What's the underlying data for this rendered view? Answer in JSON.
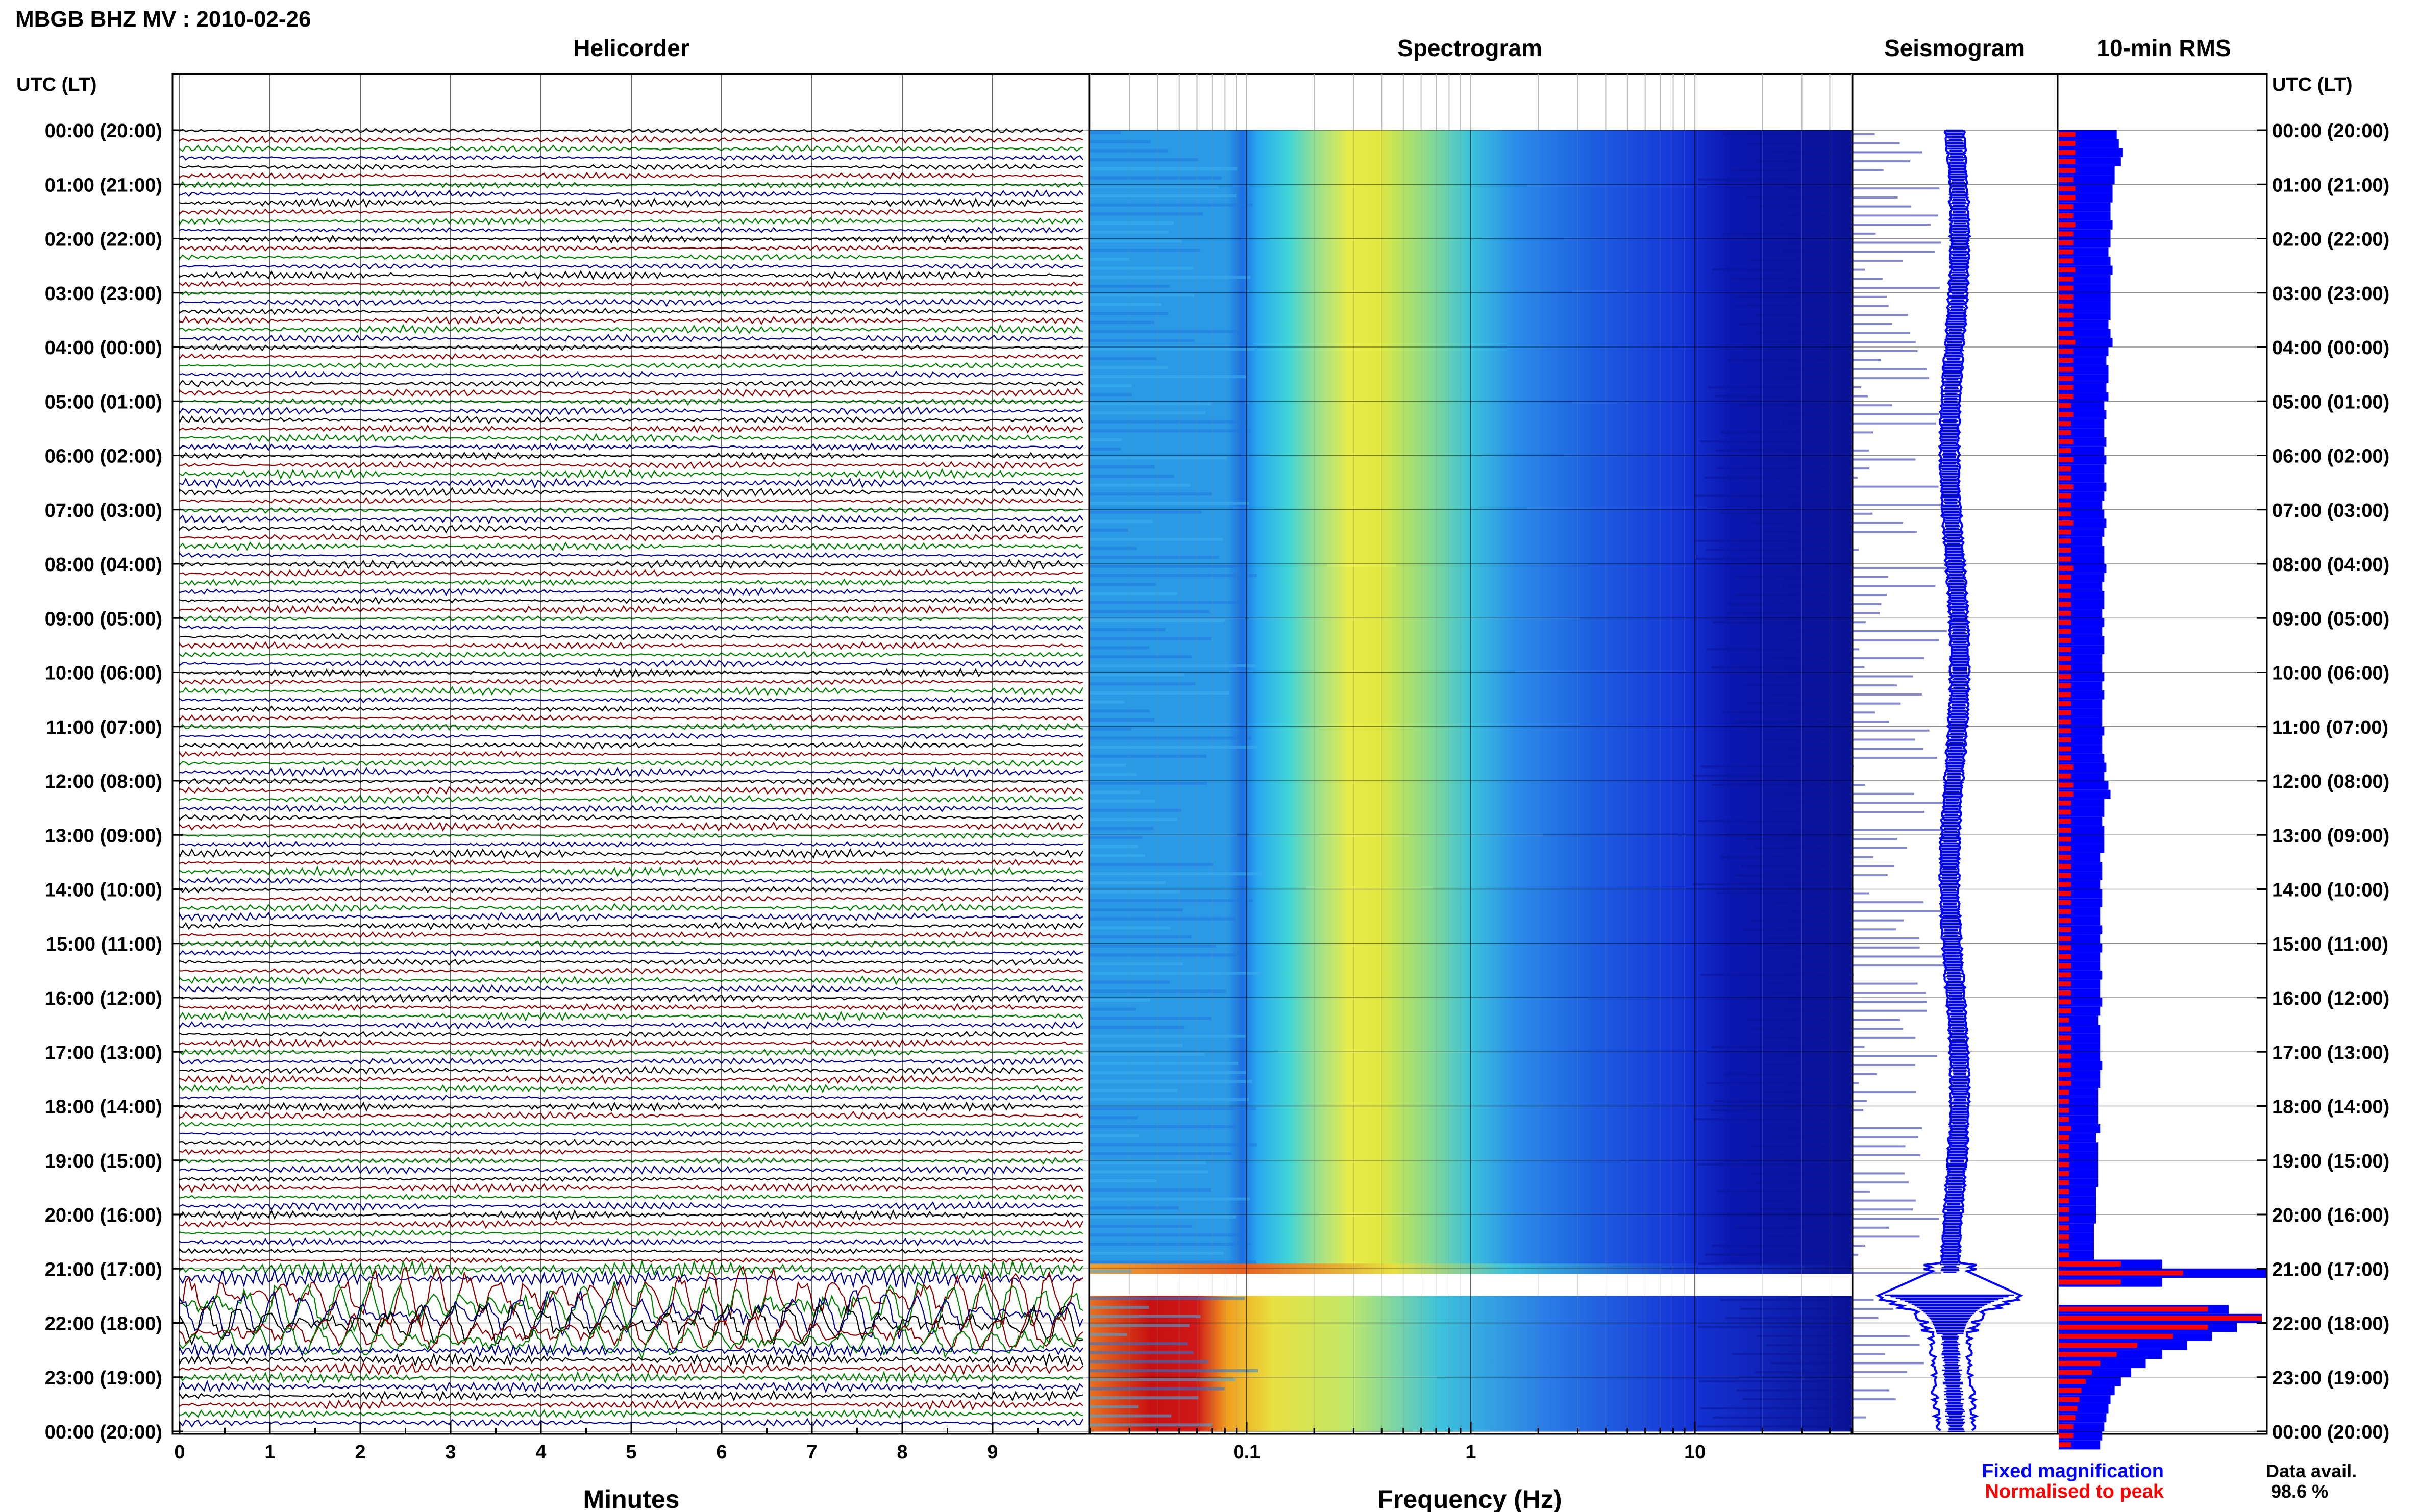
{
  "header": {
    "title": "MBGB BHZ MV : 2010-02-26"
  },
  "panels": {
    "helicorder": "Helicorder",
    "spectrogram": "Spectrogram",
    "seismogram": "Seismogram",
    "rms": "10-min RMS"
  },
  "axis": {
    "utc_label_left": "UTC (LT)",
    "utc_label_right": "UTC (LT)",
    "minutes_label": "Minutes",
    "frequency_label": "Frequency (Hz)"
  },
  "legend": {
    "fixed": "Fixed magnification",
    "normalised": "Normalised to peak",
    "fixed_color": "#0000ff",
    "normalised_color": "#ff0000"
  },
  "data_avail": {
    "label": "Data avail.",
    "value": "98.6 %"
  },
  "colors": {
    "trace_cycle": [
      "#000000",
      "#8b0000",
      "#008000",
      "#00008b"
    ],
    "seismogram": "#0000ff",
    "rms_fixed": "#0000ff",
    "rms_normalised": "#ff0000"
  },
  "chart_data": [
    {
      "type": "line",
      "panel": "Helicorder",
      "xlabel": "Minutes",
      "x_ticks": [
        0,
        1,
        2,
        3,
        4,
        5,
        6,
        7,
        8,
        9
      ],
      "xlim": [
        0,
        10
      ],
      "rows_per_hour": 6,
      "hours": 24,
      "y_ticks": [
        "00:00 (20:00)",
        "01:00 (21:00)",
        "02:00 (22:00)",
        "03:00 (23:00)",
        "04:00 (00:00)",
        "05:00 (01:00)",
        "06:00 (02:00)",
        "07:00 (03:00)",
        "08:00 (04:00)",
        "09:00 (05:00)",
        "10:00 (06:00)",
        "11:00 (07:00)",
        "12:00 (08:00)",
        "13:00 (09:00)",
        "14:00 (10:00)",
        "15:00 (11:00)",
        "16:00 (12:00)",
        "17:00 (13:00)",
        "18:00 (14:00)",
        "19:00 (15:00)",
        "20:00 (16:00)",
        "21:00 (17:00)",
        "22:00 (18:00)",
        "23:00 (19:00)",
        "00:00 (20:00)"
      ]
    },
    {
      "type": "heatmap",
      "panel": "Spectrogram",
      "xlabel": "Frequency (Hz)",
      "xscale": "log",
      "xlim": [
        0.02,
        50
      ],
      "x_tick_labels": [
        "0.1",
        "1",
        "10"
      ],
      "gap_utc": "21:00-21:30"
    },
    {
      "type": "line",
      "panel": "Seismogram",
      "note_events_utc": [
        "21:00",
        "22:00"
      ]
    },
    {
      "type": "bar",
      "panel": "10-min RMS",
      "series": [
        {
          "name": "Fixed magnification",
          "values": [
            0.28,
            0.29,
            0.31,
            0.3,
            0.27,
            0.27,
            0.26,
            0.26,
            0.25,
            0.25,
            0.26,
            0.25,
            0.25,
            0.24,
            0.25,
            0.26,
            0.25,
            0.25,
            0.25,
            0.25,
            0.25,
            0.24,
            0.25,
            0.26,
            0.24,
            0.23,
            0.24,
            0.24,
            0.23,
            0.24,
            0.22,
            0.23,
            0.22,
            0.22,
            0.23,
            0.22,
            0.23,
            0.22,
            0.22,
            0.23,
            0.22,
            0.21,
            0.22,
            0.23,
            0.22,
            0.21,
            0.22,
            0.22,
            0.23,
            0.22,
            0.21,
            0.22,
            0.22,
            0.21,
            0.22,
            0.21,
            0.22,
            0.22,
            0.21,
            0.21,
            0.22,
            0.21,
            0.22,
            0.21,
            0.21,
            0.21,
            0.22,
            0.21,
            0.21,
            0.22,
            0.23,
            0.22,
            0.24,
            0.25,
            0.22,
            0.22,
            0.21,
            0.22,
            0.22,
            0.22,
            0.2,
            0.21,
            0.21,
            0.2,
            0.21,
            0.21,
            0.2,
            0.2,
            0.21,
            0.2,
            0.21,
            0.2,
            0.2,
            0.21,
            0.2,
            0.2,
            0.21,
            0.2,
            0.19,
            0.2,
            0.2,
            0.2,
            0.2,
            0.21,
            0.2,
            0.2,
            0.19,
            0.19,
            0.19,
            0.19,
            0.2,
            0.18,
            0.19,
            0.19,
            0.19,
            0.19,
            0.19,
            0.18,
            0.18,
            0.18,
            0.18,
            0.17,
            0.17,
            0.17,
            0.17,
            0.5,
            1.0,
            0.5,
            0,
            0,
            0.82,
            0.98,
            0.86,
            0.74,
            0.62,
            0.5,
            0.42,
            0.35,
            0.3,
            0.27,
            0.25,
            0.24,
            0.23,
            0.22,
            0.21,
            0.2
          ]
        },
        {
          "name": "Normalised to peak",
          "values": [
            0.08,
            0.08,
            0.08,
            0.08,
            0.08,
            0.07,
            0.08,
            0.08,
            0.07,
            0.07,
            0.08,
            0.07,
            0.07,
            0.07,
            0.07,
            0.08,
            0.07,
            0.07,
            0.07,
            0.07,
            0.07,
            0.07,
            0.07,
            0.08,
            0.07,
            0.07,
            0.07,
            0.07,
            0.07,
            0.07,
            0.06,
            0.07,
            0.06,
            0.06,
            0.07,
            0.06,
            0.07,
            0.06,
            0.06,
            0.07,
            0.06,
            0.06,
            0.06,
            0.07,
            0.06,
            0.06,
            0.06,
            0.06,
            0.07,
            0.06,
            0.06,
            0.06,
            0.06,
            0.06,
            0.06,
            0.06,
            0.06,
            0.06,
            0.06,
            0.06,
            0.06,
            0.06,
            0.06,
            0.06,
            0.06,
            0.06,
            0.06,
            0.06,
            0.06,
            0.06,
            0.07,
            0.06,
            0.07,
            0.07,
            0.06,
            0.06,
            0.06,
            0.06,
            0.06,
            0.06,
            0.06,
            0.06,
            0.06,
            0.06,
            0.06,
            0.06,
            0.06,
            0.06,
            0.06,
            0.06,
            0.06,
            0.06,
            0.06,
            0.06,
            0.06,
            0.06,
            0.06,
            0.06,
            0.05,
            0.06,
            0.06,
            0.06,
            0.06,
            0.06,
            0.06,
            0.06,
            0.05,
            0.05,
            0.05,
            0.05,
            0.06,
            0.05,
            0.05,
            0.05,
            0.05,
            0.05,
            0.05,
            0.05,
            0.05,
            0.05,
            0.05,
            0.05,
            0.05,
            0.05,
            0.05,
            0.3,
            0.6,
            0.3,
            0,
            0,
            0.72,
            0.98,
            0.72,
            0.55,
            0.38,
            0.28,
            0.2,
            0.16,
            0.13,
            0.11,
            0.1,
            0.09,
            0.08,
            0.07,
            0.07,
            0.06
          ]
        }
      ]
    }
  ]
}
